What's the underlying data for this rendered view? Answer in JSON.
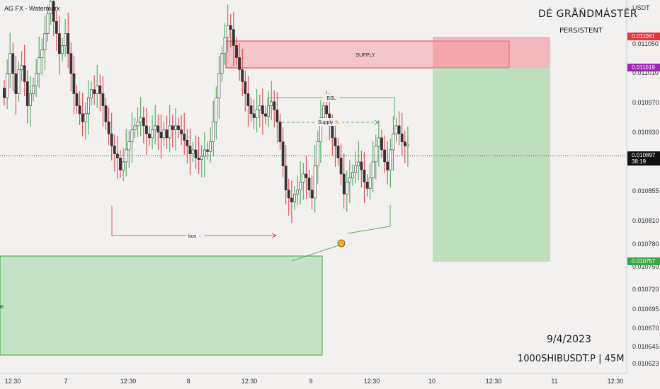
{
  "chart_data": {
    "type": "candlestick",
    "watermark": "AG FX - Watermark",
    "brand_title": "DÉ GRÅÑDMÁSTËR",
    "brand_subtitle": "PERSISTENT",
    "date_label": "9/4/2023",
    "symbol_label": "1000SHIBUSDT.P | 45M",
    "currency": "USDT",
    "x_ticks": [
      "12:30",
      "7",
      "12:30",
      "8",
      "12:30",
      "9",
      "12:30",
      "10",
      "12:30",
      "11",
      "12:30"
    ],
    "y_ticks": [
      "0.011050",
      "0.011010",
      "0.010970",
      "0.010930",
      "0.010855",
      "0.010810",
      "0.010780",
      "0.010750",
      "0.010720",
      "0.010695",
      "0.010670",
      "0.010645",
      "0.010623"
    ],
    "ylim": [
      0.010615,
      0.011075
    ],
    "price_badges": [
      {
        "text": "0.011061",
        "color": "#e5343f"
      },
      {
        "text": "0.011019",
        "color": "#9c27b0"
      },
      {
        "text": "0.010897",
        "sub": "38:19",
        "color": "#111111"
      },
      {
        "text": "0.010757",
        "color": "#3aa544"
      }
    ],
    "annotations": {
      "supply_zone": "SUPPLY",
      "bsl": "BSL",
      "supply_small": "Supply",
      "bos": "bos",
      "demand_zone": "NE"
    },
    "colors": {
      "up": "#3aa544",
      "down": "#e5343f",
      "body": "#333333"
    },
    "candles": [
      0.010955,
      0.010985,
      0.01101,
      0.010985,
      0.01096,
      0.01099,
      0.010995,
      0.010975,
      0.010945,
      0.01096,
      0.01097,
      0.010985,
      0.011005,
      0.011015,
      0.011035,
      0.01106,
      0.011075,
      0.01105,
      0.011035,
      0.01101,
      0.01102,
      0.011035,
      0.01101,
      0.010985,
      0.01096,
      0.010945,
      0.010935,
      0.010925,
      0.010935,
      0.010955,
      0.010965,
      0.01096,
      0.01097,
      0.01096,
      0.010945,
      0.010925,
      0.01091,
      0.010895,
      0.010885,
      0.01088,
      0.010865,
      0.010875,
      0.01089,
      0.0109,
      0.010915,
      0.01092,
      0.010925,
      0.01093,
      0.01092,
      0.01091,
      0.010905,
      0.010915,
      0.01092,
      0.010912,
      0.010905,
      0.010915,
      0.010905,
      0.01092,
      0.010915,
      0.01092,
      0.010915,
      0.01091,
      0.010902,
      0.010895,
      0.010885,
      0.01089,
      0.01088,
      0.010878,
      0.010882,
      0.01089,
      0.010888,
      0.0109,
      0.010925,
      0.010955,
      0.010985,
      0.01101,
      0.01103,
      0.011045,
      0.01104,
      0.01102,
      0.011005,
      0.01099,
      0.010975,
      0.01096,
      0.010945,
      0.010935,
      0.01093,
      0.01094,
      0.010945,
      0.010935,
      0.010932,
      0.010945,
      0.01095,
      0.01094,
      0.010925,
      0.0109,
      0.01087,
      0.01084,
      0.01083,
      0.010825,
      0.010835,
      0.01084,
      0.01085,
      0.01086,
      0.010855,
      0.01084,
      0.01083,
      0.01087,
      0.0109,
      0.01093,
      0.010945,
      0.010935,
      0.01092,
      0.010905,
      0.010895,
      0.01088,
      0.01086,
      0.010835,
      0.01085,
      0.010855,
      0.010862,
      0.01087,
      0.010875,
      0.010865,
      0.01085,
      0.010842,
      0.010855,
      0.010875,
      0.010895,
      0.010905,
      0.01089,
      0.010875,
      0.010865,
      0.01089,
      0.01091,
      0.01092,
      0.01091,
      0.0109,
      0.010895,
      0.010897
    ]
  }
}
